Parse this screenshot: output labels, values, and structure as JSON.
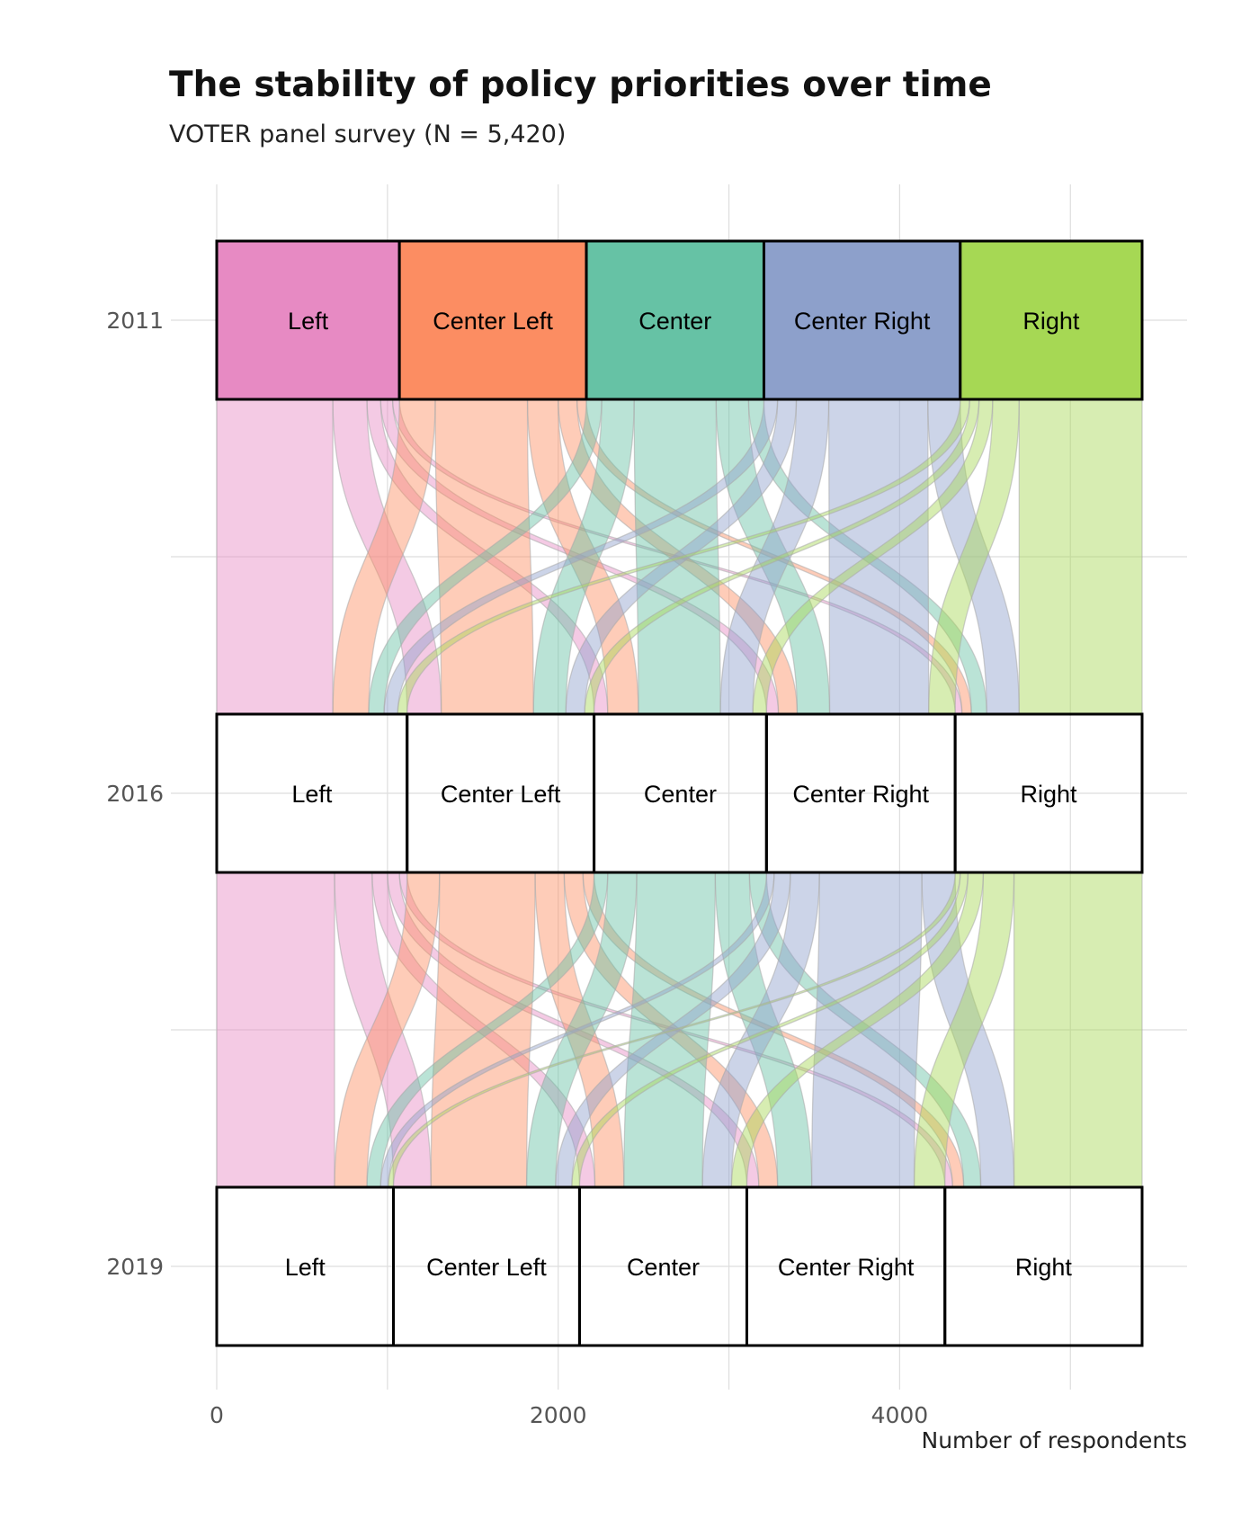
{
  "chart_data": {
    "type": "alluvial",
    "title": "The stability of policy priorities over time",
    "subtitle": "VOTER panel survey (N = 5,420)",
    "xlabel": "Number of respondents",
    "ylabel": "",
    "xlim": [
      0,
      5420
    ],
    "x_ticks": [
      0,
      2000,
      4000
    ],
    "grid": true,
    "stages": [
      "2011",
      "2016",
      "2019"
    ],
    "categories": [
      "Left",
      "Center Left",
      "Center",
      "Center Right",
      "Right"
    ],
    "colors": {
      "Left": "#e78ac3",
      "Center Left": "#fc8d62",
      "Center": "#66c2a5",
      "Center Right": "#8da0cb",
      "Right": "#a6d854"
    },
    "stage_counts": {
      "2011": [
        1070,
        1095,
        1040,
        1150,
        1065
      ],
      "2016": [
        1115,
        1095,
        1010,
        1105,
        1095
      ],
      "2019": [
        1035,
        1090,
        980,
        1160,
        1155
      ]
    },
    "flows_2011_2016": [
      [
        680,
        200,
        80,
        70,
        40
      ],
      [
        210,
        540,
        180,
        110,
        55
      ],
      [
        90,
        190,
        480,
        190,
        90
      ],
      [
        80,
        110,
        190,
        580,
        190
      ],
      [
        55,
        55,
        80,
        155,
        720
      ]
    ],
    "flows_2016_2019": [
      [
        690,
        220,
        90,
        70,
        45
      ],
      [
        190,
        560,
        170,
        110,
        65
      ],
      [
        80,
        170,
        460,
        200,
        100
      ],
      [
        45,
        95,
        170,
        600,
        195
      ],
      [
        30,
        45,
        90,
        180,
        750
      ]
    ]
  }
}
